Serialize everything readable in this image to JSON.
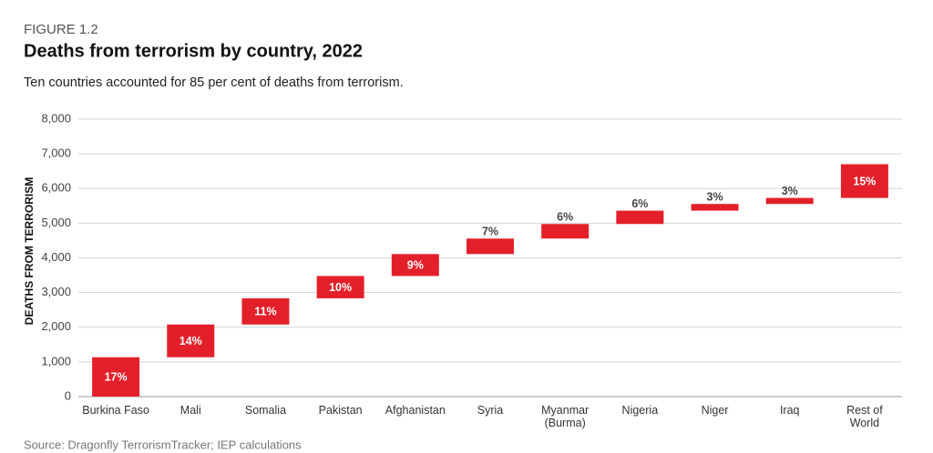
{
  "chart_data": {
    "type": "waterfall",
    "figure_label": "FIGURE 1.2",
    "title": "Deaths from terrorism by country, 2022",
    "subtitle": "Ten countries accounted for 85 per cent of deaths from terrorism.",
    "y_label": "DEATHS FROM TERRORISM",
    "source": "Source: Dragonfly TerrorismTracker; IEP calculations",
    "categories": [
      "Burkina Faso",
      "Mali",
      "Somalia",
      "Pakistan",
      "Afghanistan",
      "Syria",
      "Myanmar\n(Burma)",
      "Nigeria",
      "Niger",
      "Iraq",
      "Rest of\nWorld"
    ],
    "values": [
      1135,
      944,
      755,
      643,
      633,
      447,
      420,
      385,
      193,
      174,
      972
    ],
    "value_labels": [
      "17%",
      "14%",
      "11%",
      "10%",
      "9%",
      "7%",
      "6%",
      "6%",
      "3%",
      "3%",
      "15%"
    ],
    "color": "#e3202a",
    "ylim": [
      0,
      8000
    ],
    "yticks": [
      0,
      {
        "value": 1000,
        "label": "1,000"
      },
      {
        "value": 2000,
        "label": "2,000"
      },
      {
        "value": 3000,
        "label": "3,000"
      },
      {
        "value": 4000,
        "label": "4,000"
      },
      {
        "value": 5000,
        "label": "5,000"
      },
      {
        "value": 6000,
        "label": "6,000"
      },
      {
        "value": 7000,
        "label": "7,000"
      },
      {
        "value": 8000,
        "label": "8,000"
      }
    ],
    "grid": true
  }
}
